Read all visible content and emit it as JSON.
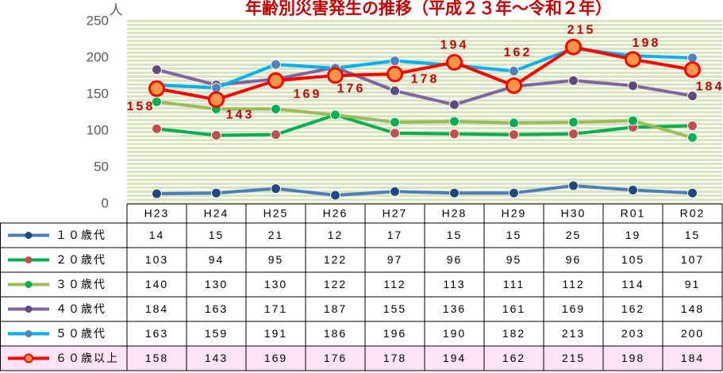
{
  "chart_data": {
    "type": "line",
    "title": "年齢別災害発生の推移（平成２３年～令和２年）",
    "y_label": "人",
    "categories": [
      "H23",
      "H24",
      "H25",
      "H26",
      "H27",
      "H28",
      "H29",
      "H30",
      "R01",
      "R02"
    ],
    "ylim": [
      0,
      250
    ],
    "yticks": [
      0,
      50,
      100,
      150,
      200,
      250
    ],
    "series": [
      {
        "name": "１０歳代",
        "color": "#4a7ebb",
        "marker_color": "#1f497d",
        "values": [
          14,
          15,
          21,
          12,
          17,
          15,
          15,
          25,
          19,
          15
        ]
      },
      {
        "name": "２０歳代",
        "color": "#00b050",
        "marker_color": "#c0504d",
        "values": [
          103,
          94,
          95,
          122,
          97,
          96,
          95,
          96,
          105,
          107
        ]
      },
      {
        "name": "３０歳代",
        "color": "#9bbb59",
        "marker_color": "#00b050",
        "values": [
          140,
          130,
          130,
          122,
          112,
          113,
          111,
          112,
          114,
          91
        ]
      },
      {
        "name": "４０歳代",
        "color": "#8064a2",
        "marker_color": "#604a7b",
        "values": [
          184,
          163,
          171,
          187,
          155,
          136,
          161,
          169,
          162,
          148
        ]
      },
      {
        "name": "５０歳代",
        "color": "#00b0f0",
        "marker_color": "#4f81bd",
        "values": [
          163,
          159,
          191,
          186,
          196,
          190,
          182,
          213,
          203,
          200
        ]
      },
      {
        "name": "６０歳以上",
        "color": "#ff0000",
        "marker_color": "#f79646",
        "values": [
          158,
          143,
          169,
          176,
          178,
          194,
          162,
          215,
          198,
          184
        ]
      }
    ],
    "labeled_series": 5,
    "label_color": "#c00000",
    "highlight_row_color": "#fce4f4"
  }
}
